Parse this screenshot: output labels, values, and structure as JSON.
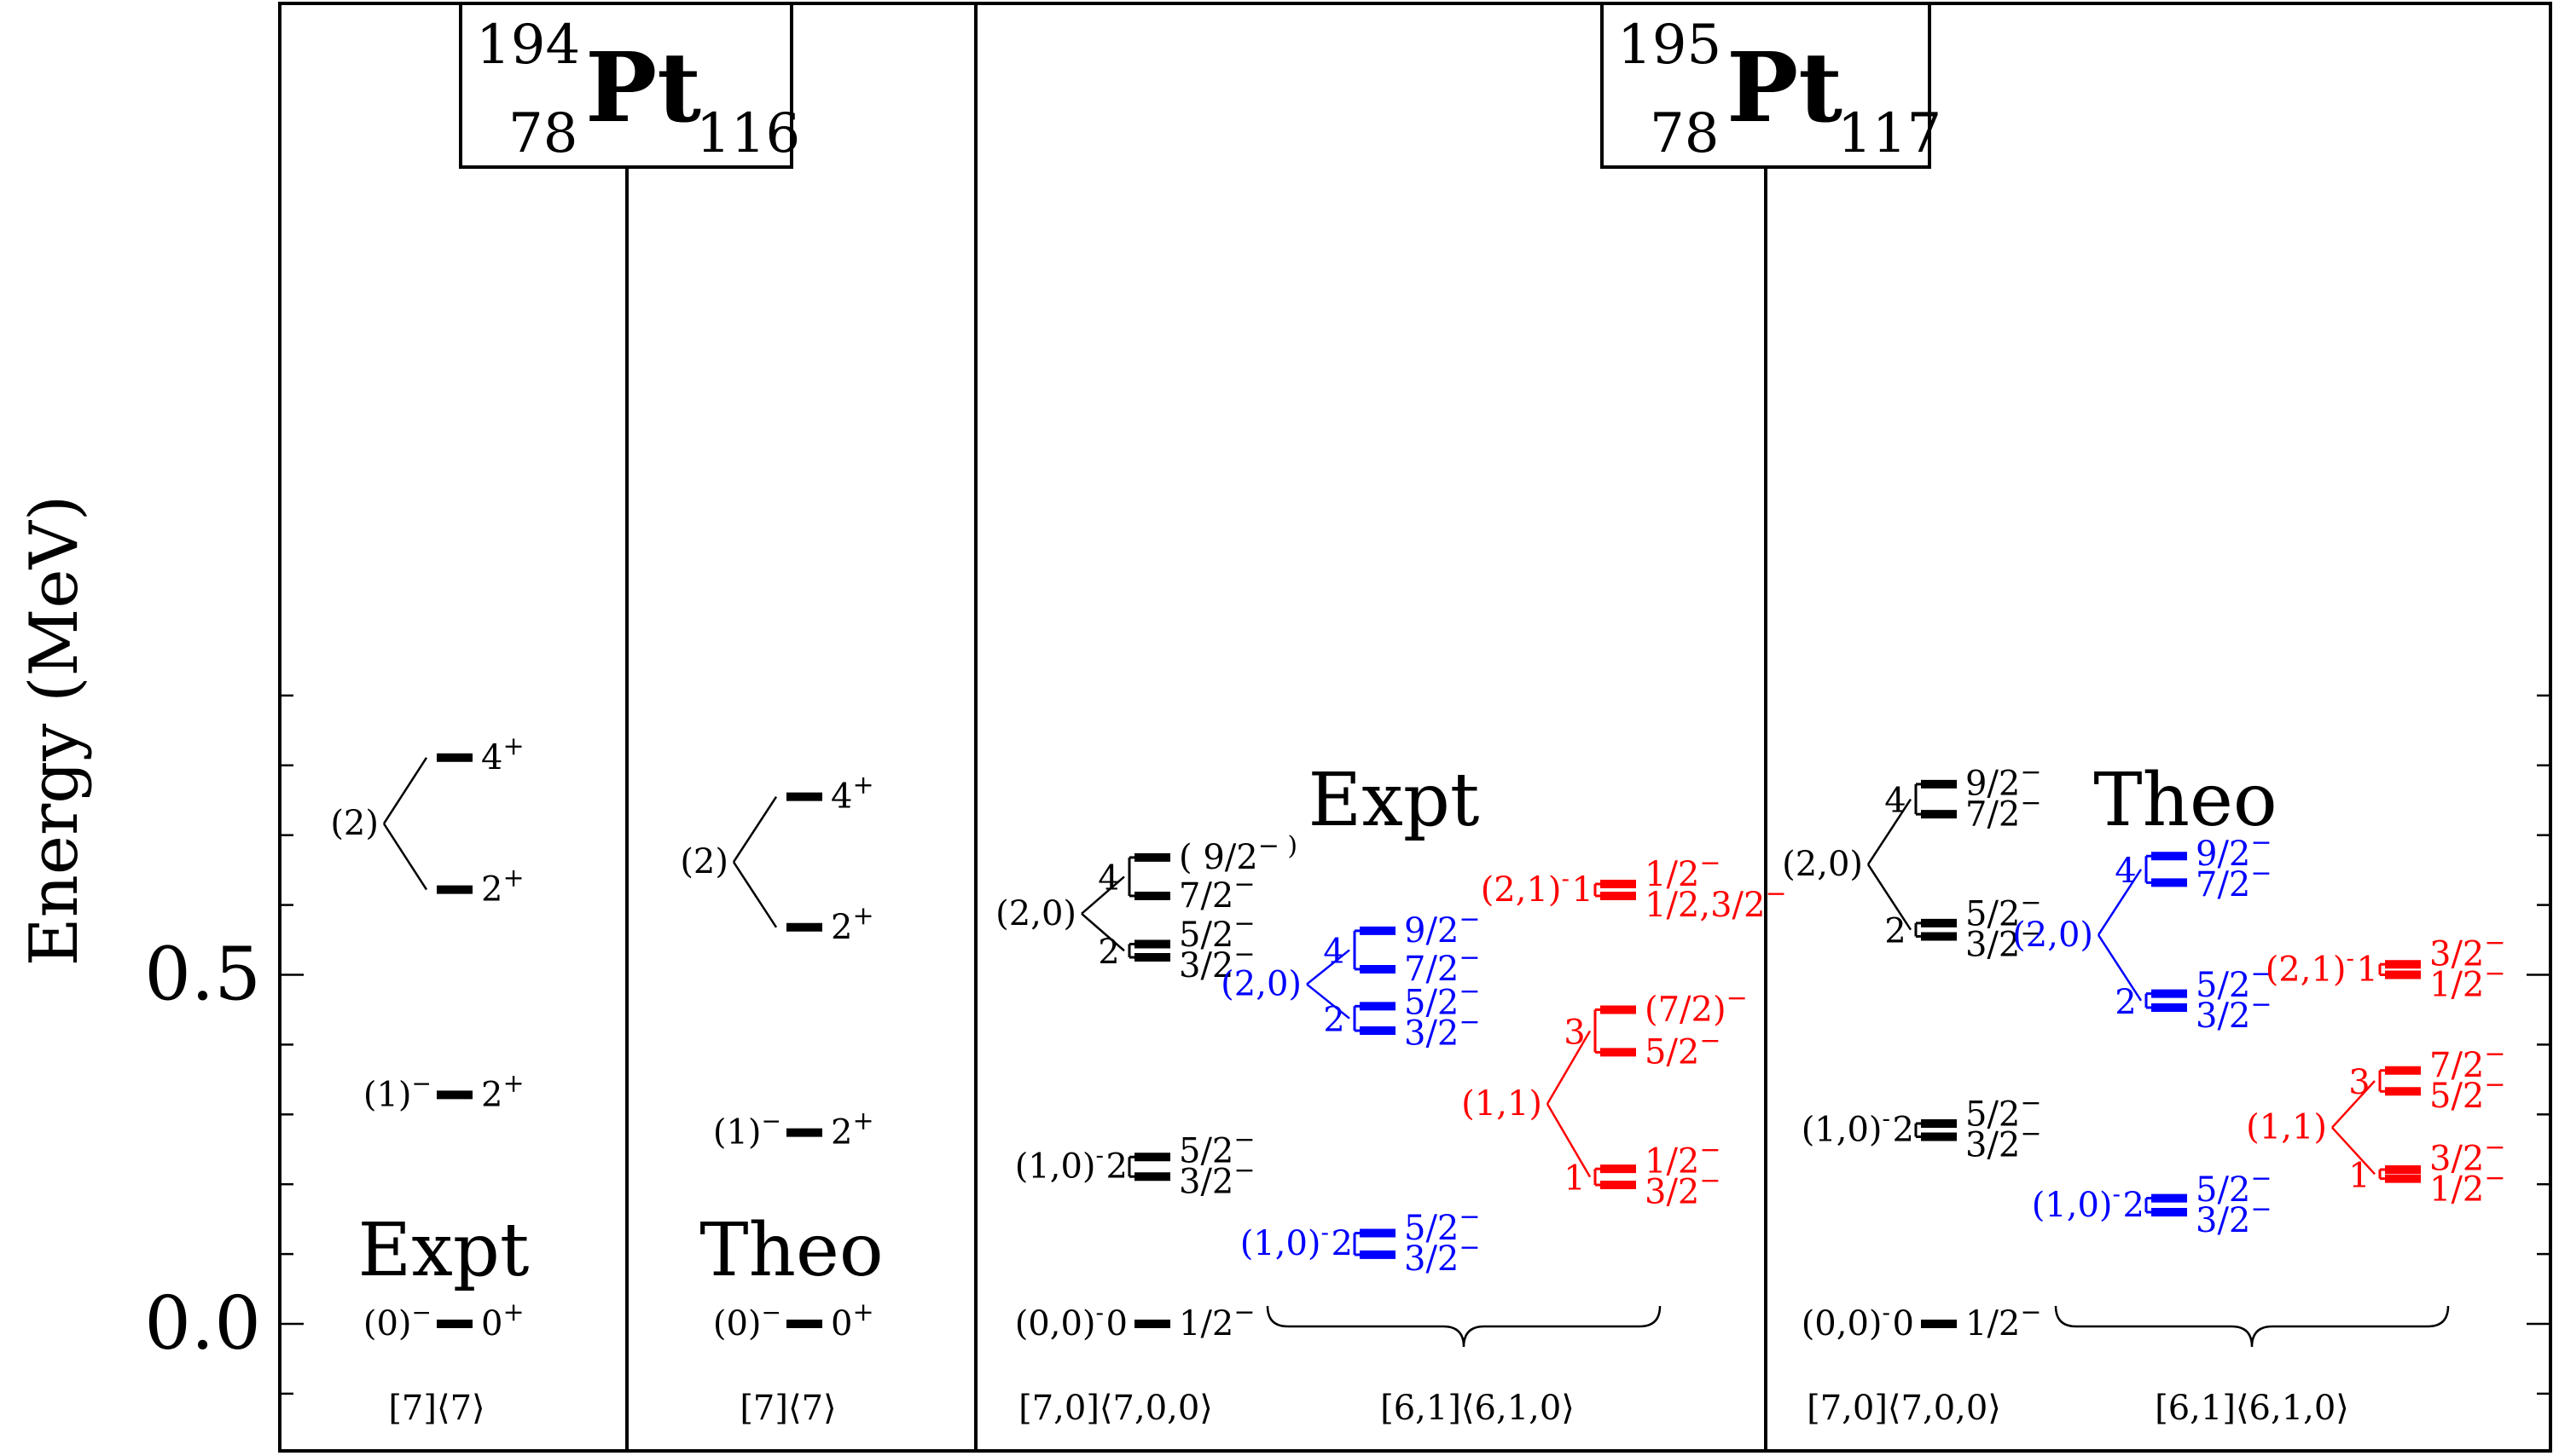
{
  "chart_data": {
    "type": "level-scheme",
    "ylabel": "Energy (MeV)",
    "ylim": [
      -0.1,
      0.95
    ],
    "yticks": [
      {
        "value": 0.0,
        "label": "0.0"
      },
      {
        "value": 0.5,
        "label": "0.5"
      }
    ],
    "minor_tick_step": 0.1,
    "colors": {
      "black": "#000000",
      "blue": "#0000ff",
      "red": "#ff0000"
    },
    "nuclei": [
      {
        "A": "194",
        "Z": "78",
        "symbol": "Pt",
        "N": "116"
      },
      {
        "A": "195",
        "Z": "78",
        "symbol": "Pt",
        "N": "117"
      }
    ],
    "panel_titles": [
      {
        "text": "Expt",
        "y": 0.105
      },
      {
        "text": "Theo",
        "y": 0.105
      },
      {
        "text": "Expt",
        "y": 0.75
      },
      {
        "text": "Theo",
        "y": 0.75
      }
    ],
    "footers": [
      "[7]⟨7⟩",
      "[7]⟨7⟩",
      "[7,0]⟨7,0,0⟩",
      "[6,1]⟨6,1,0⟩",
      "[7,0]⟨7,0,0⟩",
      "[6,1]⟨6,1,0⟩"
    ],
    "groups": [
      {
        "panel": 0,
        "col": 0,
        "color": "black",
        "label": "(0)",
        "sup": "−",
        "levels": [
          {
            "e": 0.0,
            "j": "0",
            "p": "+"
          }
        ]
      },
      {
        "panel": 0,
        "col": 0,
        "color": "black",
        "label": "(1)",
        "sup": "−",
        "levels": [
          {
            "e": 0.328,
            "j": "2",
            "p": "+"
          }
        ]
      },
      {
        "panel": 0,
        "col": 0,
        "color": "black",
        "label": "(2)",
        "sup": "",
        "subgroups": [
          {
            "L": "",
            "levels": [
              {
                "e": 0.622,
                "j": "2",
                "p": "+"
              }
            ]
          },
          {
            "L": "",
            "levels": [
              {
                "e": 0.811,
                "j": "4",
                "p": "+"
              }
            ]
          }
        ]
      },
      {
        "panel": 1,
        "col": 0,
        "color": "black",
        "label": "(0)",
        "sup": "−",
        "levels": [
          {
            "e": 0.0,
            "j": "0",
            "p": "+"
          }
        ]
      },
      {
        "panel": 1,
        "col": 0,
        "color": "black",
        "label": "(1)",
        "sup": "−",
        "levels": [
          {
            "e": 0.274,
            "j": "2",
            "p": "+"
          }
        ]
      },
      {
        "panel": 1,
        "col": 0,
        "color": "black",
        "label": "(2)",
        "sup": "",
        "subgroups": [
          {
            "L": "",
            "levels": [
              {
                "e": 0.568,
                "j": "2",
                "p": "+"
              }
            ]
          },
          {
            "L": "",
            "levels": [
              {
                "e": 0.755,
                "j": "4",
                "p": "+"
              }
            ]
          }
        ]
      },
      {
        "panel": 2,
        "col": 0,
        "color": "black",
        "label": "(0,0)",
        "sup": "-",
        "L": "0",
        "levels": [
          {
            "e": 0.0,
            "j": "1/2",
            "p": "−"
          }
        ]
      },
      {
        "panel": 2,
        "col": 0,
        "color": "black",
        "label": "(1,0)",
        "sup": "-",
        "L": "2",
        "levels": [
          {
            "e": 0.211,
            "j": "3/2",
            "p": "−"
          },
          {
            "e": 0.239,
            "j": "5/2",
            "p": "−"
          }
        ]
      },
      {
        "panel": 2,
        "col": 0,
        "color": "black",
        "label": "(2,0)",
        "sup": "",
        "subgroups": [
          {
            "L": "2",
            "levels": [
              {
                "e": 0.525,
                "j": "3/2",
                "p": "−"
              },
              {
                "e": 0.544,
                "j": "5/2",
                "p": "−"
              }
            ]
          },
          {
            "L": "4",
            "levels": [
              {
                "e": 0.613,
                "j": "7/2",
                "p": "−"
              },
              {
                "e": 0.668,
                "j": "( 9/2",
                "p": "− )"
              }
            ]
          }
        ]
      },
      {
        "panel": 2,
        "col": 1,
        "color": "blue",
        "label": "(1,0)",
        "sup": "-",
        "L": "2",
        "levels": [
          {
            "e": 0.099,
            "j": "3/2",
            "p": "−"
          },
          {
            "e": 0.13,
            "j": "5/2",
            "p": "−"
          }
        ]
      },
      {
        "panel": 2,
        "col": 1,
        "color": "blue",
        "label": "(2,0)",
        "sup": "",
        "subgroups": [
          {
            "L": "2",
            "levels": [
              {
                "e": 0.42,
                "j": "3/2",
                "p": "−"
              },
              {
                "e": 0.455,
                "j": "5/2",
                "p": "−"
              }
            ]
          },
          {
            "L": "4",
            "levels": [
              {
                "e": 0.508,
                "j": "7/2",
                "p": "−"
              },
              {
                "e": 0.563,
                "j": "9/2",
                "p": "−"
              }
            ]
          }
        ]
      },
      {
        "panel": 2,
        "col": 2,
        "color": "red",
        "label": "(1,1)",
        "sup": "",
        "subgroups": [
          {
            "L": "1",
            "levels": [
              {
                "e": 0.199,
                "j": "3/2",
                "p": "−"
              },
              {
                "e": 0.222,
                "j": "1/2",
                "p": "−"
              }
            ]
          },
          {
            "L": "3",
            "levels": [
              {
                "e": 0.389,
                "j": "5/2",
                "p": "−"
              },
              {
                "e": 0.45,
                "j": "(7/2)",
                "p": "−"
              }
            ]
          }
        ]
      },
      {
        "panel": 2,
        "col": 2,
        "color": "red",
        "label": "(2,1)",
        "sup": "-",
        "L": "1",
        "levels": [
          {
            "e": 0.613,
            "j": "1/2,3/2",
            "p": "−"
          },
          {
            "e": 0.63,
            "j": "1/2",
            "p": "−"
          }
        ]
      },
      {
        "panel": 3,
        "col": 0,
        "color": "black",
        "label": "(0,0)",
        "sup": "-",
        "L": "0",
        "levels": [
          {
            "e": 0.0,
            "j": "1/2",
            "p": "−"
          }
        ]
      },
      {
        "panel": 3,
        "col": 0,
        "color": "black",
        "label": "(1,0)",
        "sup": "-",
        "L": "2",
        "levels": [
          {
            "e": 0.268,
            "j": "3/2",
            "p": "−"
          },
          {
            "e": 0.287,
            "j": "5/2",
            "p": "−"
          }
        ]
      },
      {
        "panel": 3,
        "col": 0,
        "color": "black",
        "label": "(2,0)",
        "sup": "",
        "subgroups": [
          {
            "L": "2",
            "levels": [
              {
                "e": 0.555,
                "j": "3/2",
                "p": "−"
              },
              {
                "e": 0.574,
                "j": "5/2",
                "p": "−"
              }
            ]
          },
          {
            "L": "4",
            "levels": [
              {
                "e": 0.73,
                "j": "7/2",
                "p": "−"
              },
              {
                "e": 0.773,
                "j": "9/2",
                "p": "−"
              }
            ]
          }
        ]
      },
      {
        "panel": 3,
        "col": 1,
        "color": "blue",
        "label": "(1,0)",
        "sup": "-",
        "L": "2",
        "levels": [
          {
            "e": 0.16,
            "j": "3/2",
            "p": "−"
          },
          {
            "e": 0.18,
            "j": "5/2",
            "p": "−"
          }
        ]
      },
      {
        "panel": 3,
        "col": 1,
        "color": "blue",
        "label": "(2,0)",
        "sup": "",
        "subgroups": [
          {
            "L": "2",
            "levels": [
              {
                "e": 0.453,
                "j": "3/2",
                "p": "−"
              },
              {
                "e": 0.473,
                "j": "5/2",
                "p": "−"
              }
            ]
          },
          {
            "L": "4",
            "levels": [
              {
                "e": 0.632,
                "j": "7/2",
                "p": "−"
              },
              {
                "e": 0.67,
                "j": "9/2",
                "p": "−"
              }
            ]
          }
        ]
      },
      {
        "panel": 3,
        "col": 2,
        "color": "red",
        "label": "(1,1)",
        "sup": "",
        "subgroups": [
          {
            "L": "1",
            "levels": [
              {
                "e": 0.208,
                "j": "1/2",
                "p": "−"
              },
              {
                "e": 0.221,
                "j": "3/2",
                "p": "−"
              }
            ]
          },
          {
            "L": "3",
            "levels": [
              {
                "e": 0.333,
                "j": "5/2",
                "p": "−"
              },
              {
                "e": 0.363,
                "j": "7/2",
                "p": "−"
              }
            ]
          }
        ]
      },
      {
        "panel": 3,
        "col": 2,
        "color": "red",
        "label": "(2,1)",
        "sup": "-",
        "L": "1",
        "levels": [
          {
            "e": 0.5,
            "j": "1/2",
            "p": "−"
          },
          {
            "e": 0.515,
            "j": "3/2",
            "p": "−"
          }
        ]
      }
    ]
  }
}
